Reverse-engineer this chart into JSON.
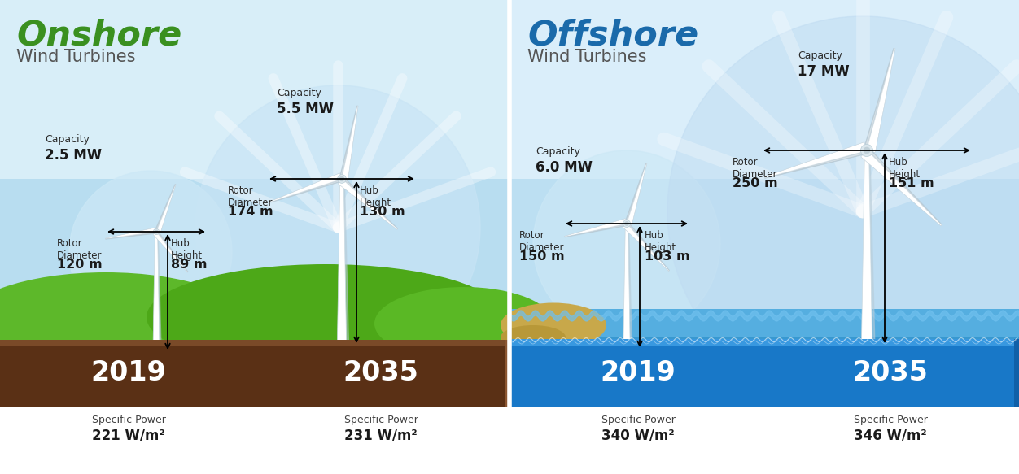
{
  "fig_width": 12.52,
  "fig_height": 5.83,
  "onshore": {
    "title": "Onshore",
    "title_color": "#3a9020",
    "subtitle": "Wind Turbines",
    "subtitle_color": "#555555",
    "bar_color": "#5c3418",
    "bar_text_color": "#ffffff",
    "year1": "2019",
    "year2": "2035",
    "cap1_label": "Capacity",
    "cap1_val": "2.5 MW",
    "cap2_label": "Capacity",
    "cap2_val": "5.5 MW",
    "rd1_label": "Rotor\nDiameter",
    "rd1_val": "120 m",
    "rd2_label": "Rotor\nDiameter",
    "rd2_val": "174 m",
    "hh1_label": "Hub\nHeight",
    "hh1_val": "89 m",
    "hh2_label": "Hub\nHeight",
    "hh2_val": "130 m",
    "sp1_label": "Specific Power",
    "sp1_val": "221 W/m²",
    "sp2_label": "Specific Power",
    "sp2_val": "231 W/m²"
  },
  "offshore": {
    "title": "Offshore",
    "title_color": "#1a6aaa",
    "subtitle": "Wind Turbines",
    "subtitle_color": "#555555",
    "bar_color": "#1878c8",
    "bar_text_color": "#ffffff",
    "year1": "2019",
    "year2": "2035",
    "cap1_label": "Capacity",
    "cap1_val": "6.0 MW",
    "cap2_label": "Capacity",
    "cap2_val": "17 MW",
    "rd1_label": "Rotor\nDiameter",
    "rd1_val": "150 m",
    "rd2_label": "Rotor\nDiameter",
    "rd2_val": "250 m",
    "hh1_label": "Hub\nHeight",
    "hh1_val": "103 m",
    "hh2_label": "Hub\nHeight",
    "hh2_val": "151 m",
    "sp1_label": "Specific Power",
    "sp1_val": "340 W/m²",
    "sp2_label": "Specific Power",
    "sp2_val": "346 W/m²"
  }
}
